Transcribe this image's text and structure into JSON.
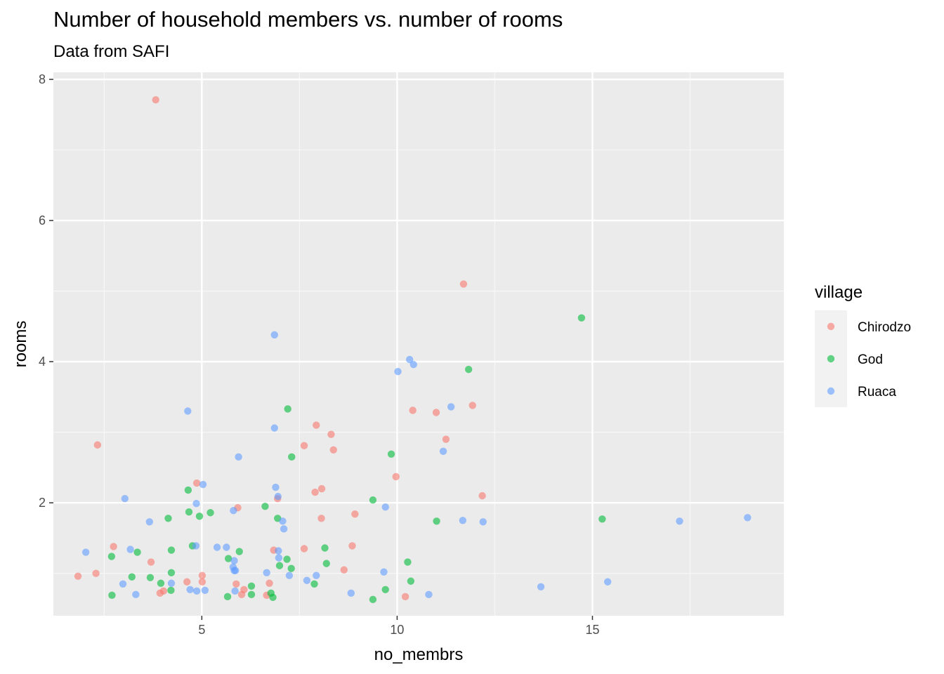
{
  "title": "Number of household members vs. number of rooms",
  "subtitle": "Data from SAFI",
  "chart_data": {
    "type": "scatter",
    "title": "Number of household members vs. number of rooms",
    "subtitle": "Data from SAFI",
    "xlabel": "no_membrs",
    "ylabel": "rooms",
    "xlim": [
      1.2,
      19.9
    ],
    "ylim": [
      0.4,
      8.1
    ],
    "xticks": [
      5,
      10,
      15
    ],
    "yticks": [
      2,
      4,
      6,
      8
    ],
    "grid": true,
    "legend": {
      "title": "village",
      "position": "right"
    },
    "point_alpha": 0.6,
    "series": [
      {
        "name": "Chirodzo",
        "color": "#F8766D",
        "points": [
          [
            3.82,
            7.71
          ],
          [
            11.7,
            5.1
          ],
          [
            2.33,
            2.82
          ],
          [
            11.93,
            3.38
          ],
          [
            10.4,
            3.31
          ],
          [
            11.0,
            3.28
          ],
          [
            11.25,
            2.9
          ],
          [
            7.93,
            3.1
          ],
          [
            8.31,
            2.97
          ],
          [
            7.62,
            2.81
          ],
          [
            8.37,
            2.75
          ],
          [
            9.97,
            2.37
          ],
          [
            4.87,
            2.28
          ],
          [
            7.9,
            2.15
          ],
          [
            8.07,
            2.2
          ],
          [
            12.18,
            2.1
          ],
          [
            6.94,
            2.06
          ],
          [
            5.92,
            1.93
          ],
          [
            8.92,
            1.84
          ],
          [
            8.06,
            1.78
          ],
          [
            2.74,
            1.38
          ],
          [
            7.62,
            1.35
          ],
          [
            6.84,
            1.33
          ],
          [
            8.85,
            1.39
          ],
          [
            3.7,
            1.16
          ],
          [
            8.64,
            1.05
          ],
          [
            1.83,
            0.96
          ],
          [
            2.29,
            1.0
          ],
          [
            5.01,
            0.97
          ],
          [
            4.62,
            0.88
          ],
          [
            5.01,
            0.88
          ],
          [
            5.88,
            0.85
          ],
          [
            6.73,
            0.86
          ],
          [
            6.08,
            0.77
          ],
          [
            4.02,
            0.75
          ],
          [
            3.93,
            0.72
          ],
          [
            6.02,
            0.7
          ],
          [
            6.66,
            0.69
          ],
          [
            10.21,
            0.67
          ]
        ]
      },
      {
        "name": "God",
        "color": "#00BA38",
        "points": [
          [
            14.72,
            4.62
          ],
          [
            11.83,
            3.89
          ],
          [
            7.2,
            3.33
          ],
          [
            9.85,
            2.69
          ],
          [
            7.3,
            2.65
          ],
          [
            9.38,
            2.04
          ],
          [
            4.65,
            2.18
          ],
          [
            6.62,
            1.95
          ],
          [
            4.67,
            1.87
          ],
          [
            5.22,
            1.86
          ],
          [
            4.94,
            1.81
          ],
          [
            4.14,
            1.78
          ],
          [
            6.94,
            1.78
          ],
          [
            11.01,
            1.74
          ],
          [
            15.25,
            1.77
          ],
          [
            4.76,
            1.39
          ],
          [
            4.22,
            1.33
          ],
          [
            8.15,
            1.36
          ],
          [
            5.96,
            1.31
          ],
          [
            3.35,
            1.3
          ],
          [
            2.69,
            1.24
          ],
          [
            5.68,
            1.21
          ],
          [
            7.18,
            1.2
          ],
          [
            10.27,
            1.16
          ],
          [
            8.19,
            1.14
          ],
          [
            6.99,
            1.11
          ],
          [
            7.29,
            1.07
          ],
          [
            4.22,
            1.01
          ],
          [
            3.21,
            0.95
          ],
          [
            3.68,
            0.94
          ],
          [
            10.35,
            0.89
          ],
          [
            3.95,
            0.86
          ],
          [
            7.88,
            0.85
          ],
          [
            6.27,
            0.82
          ],
          [
            9.7,
            0.77
          ],
          [
            4.21,
            0.76
          ],
          [
            6.77,
            0.72
          ],
          [
            2.7,
            0.69
          ],
          [
            6.27,
            0.7
          ],
          [
            5.66,
            0.67
          ],
          [
            6.82,
            0.66
          ],
          [
            9.38,
            0.63
          ]
        ]
      },
      {
        "name": "Ruaca",
        "color": "#619CFF",
        "points": [
          [
            6.86,
            4.38
          ],
          [
            10.32,
            4.03
          ],
          [
            10.42,
            3.96
          ],
          [
            10.02,
            3.86
          ],
          [
            11.38,
            3.36
          ],
          [
            4.64,
            3.3
          ],
          [
            6.86,
            3.06
          ],
          [
            11.18,
            2.73
          ],
          [
            5.94,
            2.65
          ],
          [
            5.03,
            2.26
          ],
          [
            6.89,
            2.22
          ],
          [
            6.95,
            2.09
          ],
          [
            3.03,
            2.06
          ],
          [
            4.86,
            1.99
          ],
          [
            9.7,
            1.94
          ],
          [
            5.81,
            1.89
          ],
          [
            7.07,
            1.74
          ],
          [
            11.68,
            1.75
          ],
          [
            12.2,
            1.73
          ],
          [
            17.23,
            1.74
          ],
          [
            18.97,
            1.79
          ],
          [
            3.66,
            1.73
          ],
          [
            7.1,
            1.63
          ],
          [
            2.03,
            1.3
          ],
          [
            3.17,
            1.34
          ],
          [
            4.85,
            1.39
          ],
          [
            5.39,
            1.37
          ],
          [
            5.63,
            1.37
          ],
          [
            6.96,
            1.32
          ],
          [
            6.97,
            1.22
          ],
          [
            5.83,
            1.18
          ],
          [
            5.8,
            1.09
          ],
          [
            5.83,
            1.04
          ],
          [
            5.86,
            1.04
          ],
          [
            6.66,
            1.01
          ],
          [
            7.24,
            0.97
          ],
          [
            7.93,
            0.97
          ],
          [
            9.66,
            1.02
          ],
          [
            7.69,
            0.9
          ],
          [
            2.98,
            0.85
          ],
          [
            4.22,
            0.86
          ],
          [
            15.39,
            0.88
          ],
          [
            13.68,
            0.81
          ],
          [
            4.7,
            0.77
          ],
          [
            4.87,
            0.75
          ],
          [
            5.08,
            0.76
          ],
          [
            5.85,
            0.75
          ],
          [
            8.82,
            0.72
          ],
          [
            3.31,
            0.7
          ],
          [
            10.81,
            0.7
          ]
        ]
      }
    ]
  }
}
